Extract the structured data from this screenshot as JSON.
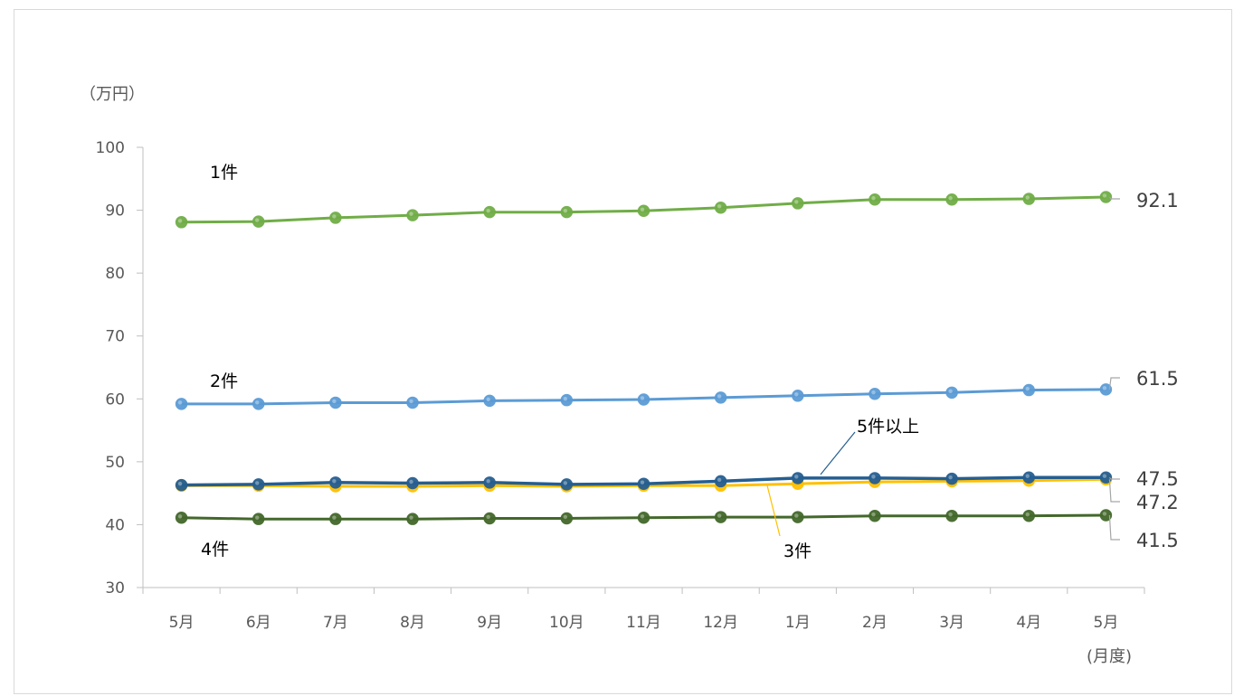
{
  "chart_data": {
    "type": "line",
    "y_unit": "（万円）",
    "x_unit": "(月度)",
    "categories": [
      "5月",
      "6月",
      "7月",
      "8月",
      "9月",
      "10月",
      "11月",
      "12月",
      "1月",
      "2月",
      "3月",
      "4月",
      "5月"
    ],
    "ylim": [
      30,
      100
    ],
    "yticks": [
      30,
      40,
      50,
      60,
      70,
      80,
      90,
      100
    ],
    "grid": false,
    "series": [
      {
        "name": "1件",
        "color": "#70ad47",
        "dot": "#70ad47",
        "width": 3,
        "values": [
          88.1,
          88.2,
          88.8,
          89.2,
          89.7,
          89.7,
          89.9,
          90.4,
          91.1,
          91.7,
          91.7,
          91.8,
          92.1
        ],
        "end_label": "92.1"
      },
      {
        "name": "2件",
        "color": "#5b9bd5",
        "dot": "#5b9bd5",
        "width": 3,
        "values": [
          59.2,
          59.2,
          59.4,
          59.4,
          59.7,
          59.8,
          59.9,
          60.2,
          60.5,
          60.8,
          61.0,
          61.4,
          61.5
        ],
        "end_label": "61.5"
      },
      {
        "name": "3件",
        "color": "#ffc000",
        "dot": "#ffc000",
        "width": 3,
        "values": [
          46.2,
          46.2,
          46.1,
          46.1,
          46.2,
          46.1,
          46.2,
          46.2,
          46.5,
          46.8,
          46.9,
          47.0,
          47.2
        ],
        "end_label": "47.2"
      },
      {
        "name": "5件以上",
        "color": "#255e91",
        "dot": "#255e91",
        "width": 3.5,
        "values": [
          46.3,
          46.4,
          46.7,
          46.6,
          46.7,
          46.4,
          46.5,
          46.9,
          47.4,
          47.4,
          47.3,
          47.5,
          47.5
        ],
        "end_label": "47.5"
      },
      {
        "name": "4件",
        "color": "#43682b",
        "dot": "#43682b",
        "width": 3,
        "values": [
          41.1,
          40.9,
          40.9,
          40.9,
          41.0,
          41.0,
          41.1,
          41.2,
          41.2,
          41.4,
          41.4,
          41.4,
          41.5
        ],
        "end_label": "41.5"
      }
    ]
  }
}
